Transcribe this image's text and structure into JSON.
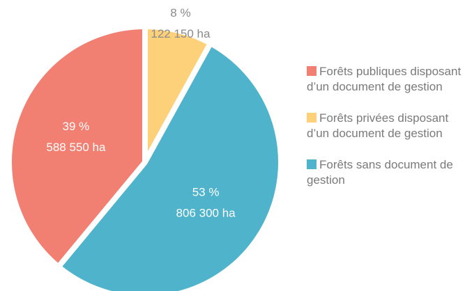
{
  "chart_data": {
    "type": "pie",
    "categories": [
      "Forêts publiques disposant d’un document de gestion",
      "Forêts privées disposant d’un document de gestion",
      "Forêts sans document de gestion"
    ],
    "values": [
      39,
      8,
      53
    ],
    "value_labels": [
      "39 %",
      "8 %",
      "53 %"
    ],
    "areas": [
      588550,
      122150,
      806300
    ],
    "area_labels": [
      "588 550 ha",
      "122 150 ha",
      "806 300 ha"
    ],
    "colors": [
      "#f28072",
      "#fdd07a",
      "#4fb3cc"
    ],
    "start_index": 1
  }
}
